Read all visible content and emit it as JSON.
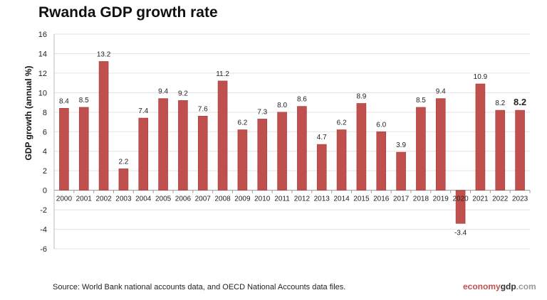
{
  "chart_data": {
    "type": "bar",
    "title": "Rwanda GDP growth rate",
    "ylabel": "GDP growth (annual %)",
    "xlabel": "",
    "ylim": [
      -6,
      16
    ],
    "yticks": [
      -6,
      -4,
      -2,
      0,
      2,
      4,
      6,
      8,
      10,
      12,
      14,
      16
    ],
    "grid": true,
    "categories": [
      "2000",
      "2001",
      "2002",
      "2003",
      "2004",
      "2005",
      "2006",
      "2007",
      "2008",
      "2009",
      "2010",
      "2011",
      "2012",
      "2013",
      "2014",
      "2015",
      "2016",
      "2017",
      "2018",
      "2019",
      "2020",
      "2021",
      "2022",
      "2023"
    ],
    "values": [
      8.4,
      8.5,
      13.2,
      2.2,
      7.4,
      9.4,
      9.2,
      7.6,
      11.2,
      6.2,
      7.3,
      8.0,
      8.6,
      4.7,
      6.2,
      8.9,
      6.0,
      3.9,
      8.5,
      9.4,
      -3.4,
      10.9,
      8.2,
      8.2
    ],
    "labels": [
      "8.4",
      "8.5",
      "13.2",
      "2.2",
      "7.4",
      "9.4",
      "9.2",
      "7.6",
      "11.2",
      "6.2",
      "7.3",
      "8.0",
      "8.6",
      "4.7",
      "6.2",
      "8.9",
      "6.0",
      "3.9",
      "8.5",
      "9.4",
      "-3.4",
      "10.9",
      "8.2",
      "8.2"
    ],
    "bar_color": "#c0504d"
  },
  "footer": {
    "source": "Source:  World Bank national accounts data, and OECD National Accounts data files.",
    "brand_a": "economy",
    "brand_b": "gdp",
    "brand_c": ".com"
  }
}
